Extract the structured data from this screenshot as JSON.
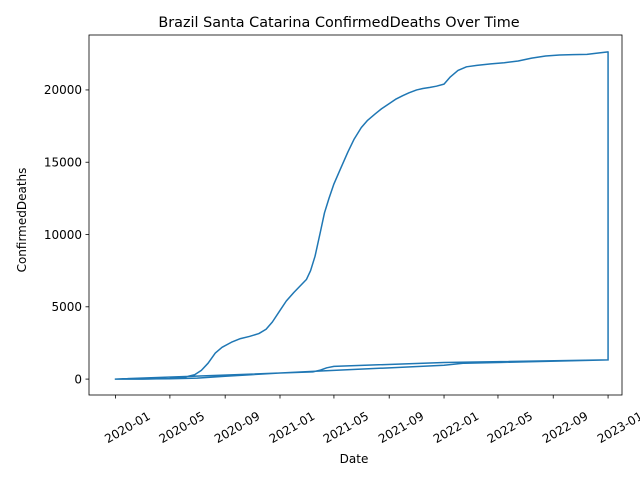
{
  "chart_data": {
    "type": "line",
    "title": "Brazil Santa Catarina ConfirmedDeaths Over Time",
    "xlabel": "Date",
    "ylabel": "ConfirmedDeaths",
    "grid": false,
    "legend": "none",
    "x_ticks": [
      "2020-01",
      "2020-05",
      "2020-09",
      "2021-01",
      "2021-05",
      "2021-09",
      "2022-01",
      "2022-05",
      "2022-09",
      "2023-01"
    ],
    "y_ticks": [
      0,
      5000,
      10000,
      15000,
      20000
    ],
    "ylim": [
      -1100,
      23800
    ],
    "xlim": [
      "2019-11-03",
      "2023-02-01"
    ],
    "series": [
      {
        "color": "#1f77b4",
        "points": [
          [
            "2020-01-01",
            0
          ],
          [
            "2020-03-01",
            0
          ],
          [
            "2020-05-01",
            30
          ],
          [
            "2020-06-01",
            120
          ],
          [
            "2020-06-25",
            300
          ],
          [
            "2020-07-10",
            600
          ],
          [
            "2020-07-25",
            1100
          ],
          [
            "2020-08-10",
            1800
          ],
          [
            "2020-08-25",
            2200
          ],
          [
            "2020-09-15",
            2550
          ],
          [
            "2020-10-05",
            2800
          ],
          [
            "2020-10-25",
            2950
          ],
          [
            "2020-11-15",
            3150
          ],
          [
            "2020-12-01",
            3450
          ],
          [
            "2020-12-15",
            3950
          ],
          [
            "2021-01-01",
            4750
          ],
          [
            "2021-01-15",
            5400
          ],
          [
            "2021-02-01",
            6000
          ],
          [
            "2021-02-15",
            6450
          ],
          [
            "2021-03-01",
            6900
          ],
          [
            "2021-03-10",
            7500
          ],
          [
            "2021-03-20",
            8500
          ],
          [
            "2021-04-01",
            10200
          ],
          [
            "2021-04-10",
            11500
          ],
          [
            "2021-04-20",
            12500
          ],
          [
            "2021-05-01",
            13500
          ],
          [
            "2021-05-15",
            14500
          ],
          [
            "2021-06-01",
            15700
          ],
          [
            "2021-06-15",
            16600
          ],
          [
            "2021-07-01",
            17400
          ],
          [
            "2021-07-15",
            17900
          ],
          [
            "2021-08-01",
            18350
          ],
          [
            "2021-08-15",
            18700
          ],
          [
            "2021-09-01",
            19050
          ],
          [
            "2021-09-15",
            19350
          ],
          [
            "2021-10-01",
            19600
          ],
          [
            "2021-10-15",
            19800
          ],
          [
            "2021-11-01",
            20000
          ],
          [
            "2021-11-15",
            20100
          ],
          [
            "2021-12-01",
            20180
          ],
          [
            "2021-12-15",
            20260
          ],
          [
            "2022-01-01",
            20400
          ],
          [
            "2022-01-15",
            20900
          ],
          [
            "2022-02-01",
            21350
          ],
          [
            "2022-02-20",
            21600
          ],
          [
            "2022-03-15",
            21700
          ],
          [
            "2022-04-15",
            21800
          ],
          [
            "2022-05-15",
            21880
          ],
          [
            "2022-06-15",
            22000
          ],
          [
            "2022-07-15",
            22200
          ],
          [
            "2022-08-15",
            22350
          ],
          [
            "2022-09-15",
            22420
          ],
          [
            "2022-10-15",
            22440
          ],
          [
            "2022-11-15",
            22460
          ],
          [
            "2022-12-01",
            22520
          ],
          [
            "2023-01-01",
            22630
          ],
          [
            "2023-01-01",
            1330
          ],
          [
            "2022-01-01",
            1150
          ],
          [
            "2021-05-01",
            880
          ],
          [
            "2021-04-15",
            780
          ],
          [
            "2021-04-01",
            620
          ],
          [
            "2021-03-15",
            500
          ],
          [
            "2021-01-01",
            420
          ],
          [
            "2020-09-01",
            200
          ],
          [
            "2020-07-01",
            70
          ],
          [
            "2020-05-01",
            20
          ],
          [
            "2020-01-01",
            0
          ],
          [
            "2021-01-01",
            420
          ],
          [
            "2021-04-01",
            560
          ],
          [
            "2021-09-01",
            780
          ],
          [
            "2022-01-01",
            960
          ],
          [
            "2022-02-15",
            1100
          ],
          [
            "2022-05-01",
            1150
          ],
          [
            "2023-01-01",
            1330
          ]
        ]
      }
    ]
  }
}
